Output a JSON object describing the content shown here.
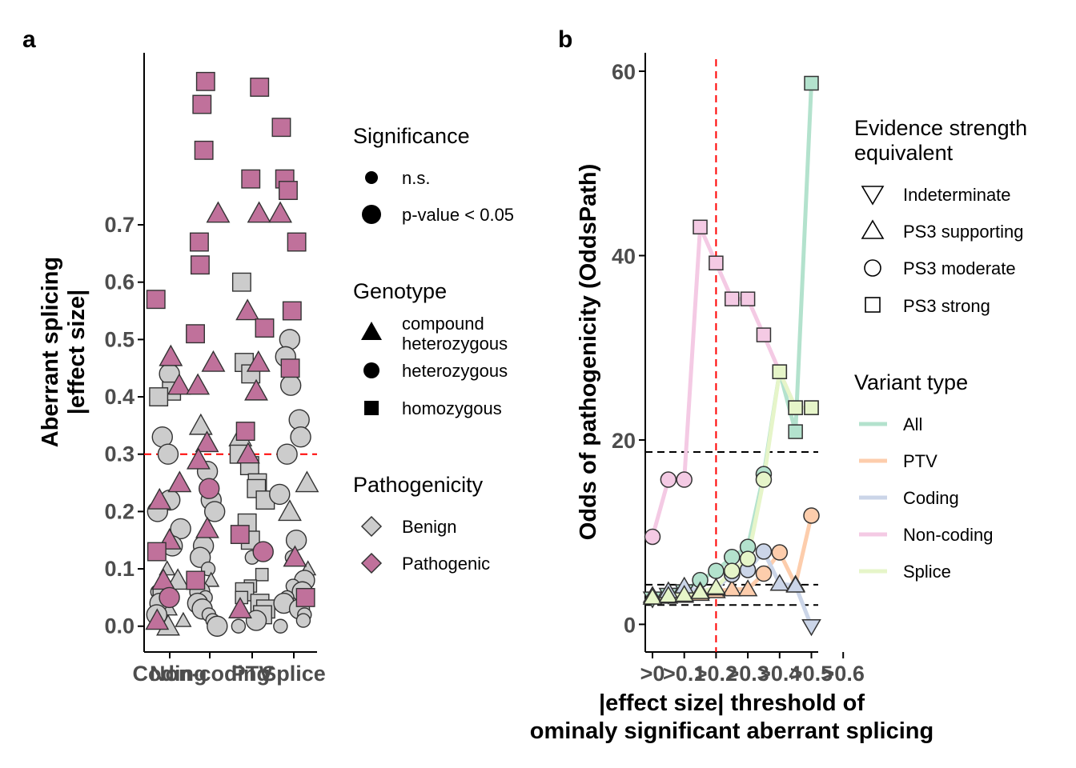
{
  "panel_a": {
    "tag": "a",
    "chart_data": {
      "type": "scatter",
      "categories": [
        "Coding",
        "Non-coding",
        "PTV",
        "Splice"
      ],
      "ylabel_lines": [
        "Aberrant splicing",
        "|effect size|"
      ],
      "xlabel": "",
      "y_ticks": [
        "0.0",
        "0.1",
        "0.2",
        "0.3",
        "0.4",
        "0.5",
        "0.6",
        "0.7"
      ],
      "ylim": [
        -0.045,
        1.0
      ],
      "threshold_line": 0.3,
      "series": [
        {
          "name": "Pathogenic",
          "color": "#c0719b",
          "points": [
            [
              "Coding",
              0.57,
              "homozygous"
            ],
            [
              "Coding",
              0.47,
              "compound heterozygous"
            ],
            [
              "Coding",
              0.42,
              "compound heterozygous"
            ],
            [
              "Coding",
              0.25,
              "compound heterozygous"
            ],
            [
              "Coding",
              0.22,
              "compound heterozygous"
            ],
            [
              "Coding",
              0.15,
              "compound heterozygous"
            ],
            [
              "Coding",
              0.13,
              "homozygous"
            ],
            [
              "Coding",
              0.08,
              "compound heterozygous"
            ],
            [
              "Coding",
              0.05,
              "heterozygous"
            ],
            [
              "Coding",
              0.01,
              "compound heterozygous"
            ],
            [
              "Non-coding",
              0.95,
              "homozygous"
            ],
            [
              "Non-coding",
              0.91,
              "homozygous"
            ],
            [
              "Non-coding",
              0.83,
              "homozygous"
            ],
            [
              "Non-coding",
              0.72,
              "compound heterozygous"
            ],
            [
              "Non-coding",
              0.67,
              "homozygous"
            ],
            [
              "Non-coding",
              0.63,
              "homozygous"
            ],
            [
              "Non-coding",
              0.51,
              "homozygous"
            ],
            [
              "Non-coding",
              0.46,
              "compound heterozygous"
            ],
            [
              "Non-coding",
              0.42,
              "compound heterozygous"
            ],
            [
              "Non-coding",
              0.32,
              "compound heterozygous"
            ],
            [
              "Non-coding",
              0.29,
              "compound heterozygous"
            ],
            [
              "Non-coding",
              0.24,
              "heterozygous"
            ],
            [
              "Non-coding",
              0.17,
              "compound heterozygous"
            ],
            [
              "Non-coding",
              0.08,
              "homozygous"
            ],
            [
              "PTV",
              0.94,
              "homozygous"
            ],
            [
              "PTV",
              0.78,
              "homozygous"
            ],
            [
              "PTV",
              0.72,
              "compound heterozygous"
            ],
            [
              "PTV",
              0.55,
              "compound heterozygous"
            ],
            [
              "PTV",
              0.52,
              "homozygous"
            ],
            [
              "PTV",
              0.46,
              "compound heterozygous"
            ],
            [
              "PTV",
              0.41,
              "compound heterozygous"
            ],
            [
              "PTV",
              0.34,
              "homozygous"
            ],
            [
              "PTV",
              0.3,
              "compound heterozygous"
            ],
            [
              "PTV",
              0.16,
              "homozygous"
            ],
            [
              "PTV",
              0.13,
              "heterozygous"
            ],
            [
              "PTV",
              0.03,
              "compound heterozygous"
            ],
            [
              "Splice",
              0.87,
              "homozygous"
            ],
            [
              "Splice",
              0.78,
              "homozygous"
            ],
            [
              "Splice",
              0.76,
              "homozygous"
            ],
            [
              "Splice",
              0.72,
              "compound heterozygous"
            ],
            [
              "Splice",
              0.67,
              "homozygous"
            ],
            [
              "Splice",
              0.55,
              "homozygous"
            ],
            [
              "Splice",
              0.45,
              "homozygous"
            ],
            [
              "Splice",
              0.12,
              "compound heterozygous"
            ],
            [
              "Splice",
              0.05,
              "homozygous"
            ]
          ]
        },
        {
          "name": "Benign",
          "color": "#cccccc",
          "points": [
            [
              "Coding",
              0.44,
              "heterozygous"
            ],
            [
              "Coding",
              0.41,
              "homozygous"
            ],
            [
              "Coding",
              0.4,
              "homozygous"
            ],
            [
              "Coding",
              0.33,
              "heterozygous"
            ],
            [
              "Coding",
              0.3,
              "heterozygous"
            ],
            [
              "Coding",
              0.22,
              "heterozygous"
            ],
            [
              "Coding",
              0.2,
              "heterozygous"
            ],
            [
              "Coding",
              0.17,
              "heterozygous"
            ],
            [
              "Coding",
              0.14,
              "heterozygous"
            ],
            [
              "Coding",
              0.1,
              "compound heterozygous"
            ],
            [
              "Coding",
              0.08,
              "compound heterozygous"
            ],
            [
              "Coding",
              0.06,
              "heterozygous"
            ],
            [
              "Coding",
              0.05,
              "homozygous"
            ],
            [
              "Coding",
              0.04,
              "heterozygous"
            ],
            [
              "Coding",
              0.03,
              "compound heterozygous"
            ],
            [
              "Coding",
              0.02,
              "heterozygous"
            ],
            [
              "Coding",
              0.01,
              "compound heterozygous"
            ],
            [
              "Coding",
              0.0,
              "compound heterozygous"
            ],
            [
              "Non-coding",
              0.35,
              "compound heterozygous"
            ],
            [
              "Non-coding",
              0.27,
              "heterozygous"
            ],
            [
              "Non-coding",
              0.22,
              "heterozygous"
            ],
            [
              "Non-coding",
              0.2,
              "heterozygous"
            ],
            [
              "Non-coding",
              0.14,
              "heterozygous"
            ],
            [
              "Non-coding",
              0.12,
              "heterozygous"
            ],
            [
              "Non-coding",
              0.1,
              "heterozygous"
            ],
            [
              "Non-coding",
              0.08,
              "compound heterozygous"
            ],
            [
              "Non-coding",
              0.06,
              "heterozygous"
            ],
            [
              "Non-coding",
              0.05,
              "heterozygous"
            ],
            [
              "Non-coding",
              0.04,
              "heterozygous"
            ],
            [
              "Non-coding",
              0.03,
              "heterozygous"
            ],
            [
              "Non-coding",
              0.02,
              "heterozygous"
            ],
            [
              "Non-coding",
              0.01,
              "heterozygous"
            ],
            [
              "Non-coding",
              0.0,
              "heterozygous"
            ],
            [
              "PTV",
              0.6,
              "homozygous"
            ],
            [
              "PTV",
              0.46,
              "homozygous"
            ],
            [
              "PTV",
              0.44,
              "homozygous"
            ],
            [
              "PTV",
              0.33,
              "compound heterozygous"
            ],
            [
              "PTV",
              0.3,
              "homozygous"
            ],
            [
              "PTV",
              0.28,
              "homozygous"
            ],
            [
              "PTV",
              0.25,
              "homozygous"
            ],
            [
              "PTV",
              0.24,
              "homozygous"
            ],
            [
              "PTV",
              0.22,
              "homozygous"
            ],
            [
              "PTV",
              0.18,
              "homozygous"
            ],
            [
              "PTV",
              0.15,
              "homozygous"
            ],
            [
              "PTV",
              0.12,
              "heterozygous"
            ],
            [
              "PTV",
              0.09,
              "homozygous"
            ],
            [
              "PTV",
              0.07,
              "homozygous"
            ],
            [
              "PTV",
              0.06,
              "homozygous"
            ],
            [
              "PTV",
              0.05,
              "homozygous"
            ],
            [
              "PTV",
              0.04,
              "homozygous"
            ],
            [
              "PTV",
              0.03,
              "homozygous"
            ],
            [
              "PTV",
              0.02,
              "homozygous"
            ],
            [
              "PTV",
              0.01,
              "heterozygous"
            ],
            [
              "PTV",
              0.0,
              "heterozygous"
            ],
            [
              "Splice",
              0.5,
              "heterozygous"
            ],
            [
              "Splice",
              0.47,
              "heterozygous"
            ],
            [
              "Splice",
              0.42,
              "heterozygous"
            ],
            [
              "Splice",
              0.36,
              "heterozygous"
            ],
            [
              "Splice",
              0.33,
              "heterozygous"
            ],
            [
              "Splice",
              0.3,
              "heterozygous"
            ],
            [
              "Splice",
              0.25,
              "compound heterozygous"
            ],
            [
              "Splice",
              0.23,
              "heterozygous"
            ],
            [
              "Splice",
              0.2,
              "compound heterozygous"
            ],
            [
              "Splice",
              0.15,
              "heterozygous"
            ],
            [
              "Splice",
              0.12,
              "heterozygous"
            ],
            [
              "Splice",
              0.1,
              "compound heterozygous"
            ],
            [
              "Splice",
              0.08,
              "heterozygous"
            ],
            [
              "Splice",
              0.07,
              "heterozygous"
            ],
            [
              "Splice",
              0.06,
              "heterozygous"
            ],
            [
              "Splice",
              0.05,
              "heterozygous"
            ],
            [
              "Splice",
              0.04,
              "heterozygous"
            ],
            [
              "Splice",
              0.03,
              "heterozygous"
            ],
            [
              "Splice",
              0.02,
              "heterozygous"
            ],
            [
              "Splice",
              0.01,
              "heterozygous"
            ],
            [
              "Splice",
              0.0,
              "heterozygous"
            ]
          ]
        }
      ]
    },
    "legend": {
      "significance": {
        "title": "Significance",
        "items": [
          "n.s.",
          "p-value < 0.05"
        ]
      },
      "genotype": {
        "title": "Genotype",
        "items": [
          [
            "compound",
            "heterozygous"
          ],
          [
            "heterozygous"
          ],
          [
            "homozygous"
          ]
        ]
      },
      "pathogenicity": {
        "title": "Pathogenicity",
        "items": [
          "Benign",
          "Pathogenic"
        ],
        "colors": [
          "#cccccc",
          "#c0719b"
        ]
      }
    }
  },
  "panel_b": {
    "tag": "b",
    "chart_data": {
      "type": "line",
      "x_ticks": [
        ">0",
        ">0.1",
        ">0.2",
        ">0.3",
        ">0.4",
        ">0.5",
        ">0.6"
      ],
      "x": [
        0.0,
        0.05,
        0.1,
        0.15,
        0.2,
        0.25,
        0.3,
        0.35,
        0.4,
        0.45,
        0.5
      ],
      "ylim": [
        -3,
        62
      ],
      "y_ticks": [
        0,
        20,
        40,
        60
      ],
      "xlabel_lines": [
        "|effect size| threshold of",
        "ominaly significant aberrant splicing"
      ],
      "ylabel": "Odds of pathogenicity (OddsPath)",
      "threshold_line_x": 0.2,
      "reference_lines_y": [
        18.7,
        4.3,
        2.1
      ],
      "series": [
        {
          "name": "All",
          "color": "#b3e2cd",
          "values": [
            2.8,
            3.2,
            3.6,
            4.8,
            5.8,
            7.3,
            8.4,
            16.3,
            27.4,
            20.9,
            58.7
          ],
          "evidence": [
            "Indeterminate",
            "Indeterminate",
            "Indeterminate",
            "PS3 moderate",
            "PS3 moderate",
            "PS3 moderate",
            "PS3 moderate",
            "PS3 moderate",
            "PS3 strong",
            "PS3 strong",
            "PS3 strong"
          ]
        },
        {
          "name": "PTV",
          "color": "#fdcdac",
          "values": [
            2.9,
            3.0,
            3.1,
            3.3,
            3.6,
            3.8,
            3.8,
            5.5,
            7.8,
            4.3,
            11.8
          ],
          "evidence": [
            "PS3 supporting",
            "PS3 supporting",
            "PS3 supporting",
            "PS3 supporting",
            "PS3 supporting",
            "PS3 supporting",
            "PS3 supporting",
            "PS3 moderate",
            "PS3 moderate",
            "PS3 supporting",
            "PS3 moderate"
          ]
        },
        {
          "name": "Coding",
          "color": "#cbd5e8",
          "values": [
            3.1,
            3.6,
            4.1,
            3.6,
            3.9,
            5.4,
            5.9,
            7.9,
            4.4,
            4.2,
            -0.2
          ],
          "evidence": [
            "PS3 supporting",
            "PS3 supporting",
            "PS3 supporting",
            "PS3 supporting",
            "PS3 supporting",
            "PS3 moderate",
            "PS3 moderate",
            "PS3 moderate",
            "PS3 supporting",
            "PS3 supporting",
            "Indeterminate"
          ]
        },
        {
          "name": "Non-coding",
          "color": "#f4cae4",
          "values": [
            9.5,
            15.7,
            15.7,
            43.1,
            39.2,
            35.3,
            35.3,
            31.4,
            27.4,
            23.5,
            23.5
          ],
          "evidence": [
            "PS3 moderate",
            "PS3 moderate",
            "PS3 moderate",
            "PS3 strong",
            "PS3 strong",
            "PS3 strong",
            "PS3 strong",
            "PS3 strong",
            "PS3 strong",
            "PS3 strong",
            "PS3 strong"
          ]
        },
        {
          "name": "Splice",
          "color": "#e6f5c9",
          "values": [
            2.9,
            3.1,
            3.2,
            3.5,
            4.0,
            5.8,
            7.1,
            15.7,
            27.4,
            23.5,
            23.5
          ],
          "evidence": [
            "PS3 supporting",
            "PS3 supporting",
            "PS3 supporting",
            "PS3 supporting",
            "PS3 supporting",
            "PS3 moderate",
            "PS3 moderate",
            "PS3 moderate",
            "PS3 strong",
            "PS3 strong",
            "PS3 strong"
          ]
        }
      ]
    },
    "legend": {
      "evidence": {
        "title_lines": [
          "Evidence strength",
          "equivalent"
        ],
        "items": [
          "Indeterminate",
          "PS3 supporting",
          "PS3 moderate",
          "PS3 strong"
        ]
      },
      "variant": {
        "title": "Variant type",
        "items": [
          "All",
          "PTV",
          "Coding",
          "Non-coding",
          "Splice"
        ]
      }
    }
  }
}
